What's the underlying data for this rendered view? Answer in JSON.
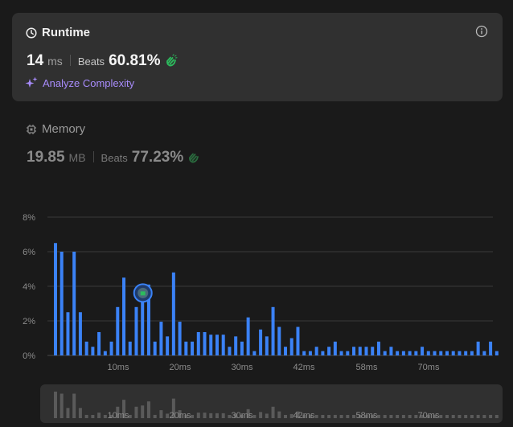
{
  "runtime": {
    "title": "Runtime",
    "value": "14",
    "unit": "ms",
    "beats_label": "Beats",
    "beats_value": "60.81%",
    "analyze_label": "Analyze Complexity",
    "icons": {
      "title": "clock-icon",
      "info": "info-icon",
      "beats": "clap-icon",
      "analyze": "sparkle-icon"
    }
  },
  "memory": {
    "title": "Memory",
    "value": "19.85",
    "unit": "MB",
    "beats_label": "Beats",
    "beats_value": "77.23%",
    "icons": {
      "title": "chip-icon",
      "beats": "clap-icon"
    }
  },
  "colors": {
    "bar": "#3b82f6",
    "accent_green": "#2cbb5d",
    "analyze": "#a78bfa",
    "mini_bar": "#5a5a5a"
  },
  "chart_data": {
    "type": "bar",
    "x_ticks": [
      "10ms",
      "20ms",
      "30ms",
      "42ms",
      "58ms",
      "70ms"
    ],
    "y_ticks": [
      "0%",
      "2%",
      "4%",
      "6%",
      "8%"
    ],
    "ylim": [
      0,
      8
    ],
    "grid": true,
    "highlighted_bar_index": 14,
    "values": [
      6.5,
      6.0,
      2.5,
      6.0,
      2.5,
      0.8,
      0.5,
      1.35,
      0.25,
      0.8,
      2.8,
      4.5,
      0.8,
      2.8,
      3.1,
      4.1,
      0.8,
      1.95,
      1.1,
      4.8,
      1.95,
      0.8,
      0.8,
      1.35,
      1.35,
      1.2,
      1.2,
      1.2,
      0.5,
      1.1,
      0.8,
      2.2,
      0.25,
      1.5,
      1.1,
      2.8,
      1.65,
      0.5,
      1.0,
      1.65,
      0.25,
      0.25,
      0.5,
      0.25,
      0.5,
      0.8,
      0.25,
      0.25,
      0.5,
      0.5,
      0.5,
      0.5,
      0.8,
      0.25,
      0.5,
      0.25,
      0.25,
      0.25,
      0.25,
      0.5,
      0.25,
      0.25,
      0.25,
      0.25,
      0.25,
      0.25,
      0.25,
      0.25,
      0.8,
      0.25,
      0.8,
      0.25
    ]
  }
}
